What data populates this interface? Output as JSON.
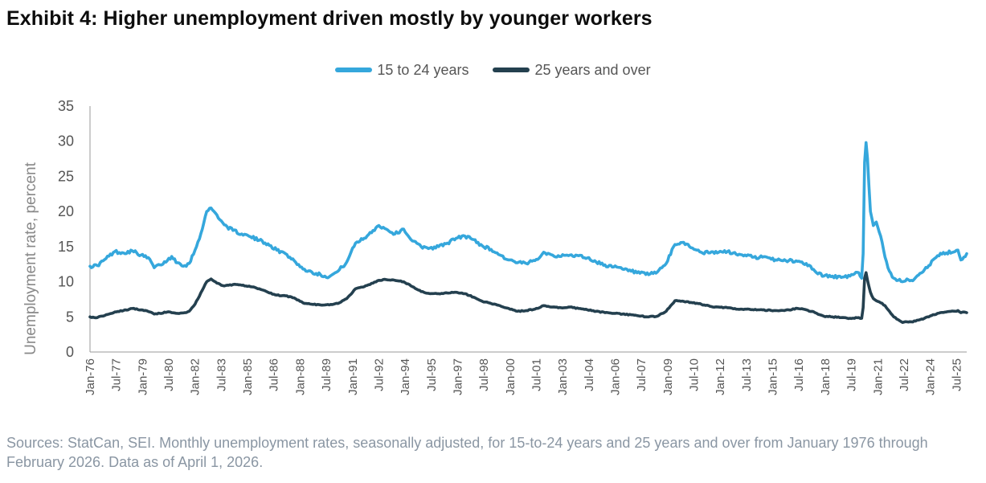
{
  "title": "Exhibit 4: Higher unemployment driven mostly by younger workers",
  "source_note": "Sources: StatCan, SEI. Monthly unemployment rates, seasonally adjusted, for 15-to-24 years and 25 years and over from January 1976 through February 2026. Data as of April 1, 2026.",
  "colors": {
    "youth": "#35a7dc",
    "adult": "#24404f",
    "axis": "#9a9a9a",
    "text": "#555555"
  },
  "chart_data": {
    "type": "line",
    "title": "Exhibit 4: Higher unemployment driven mostly by younger workers",
    "xlabel": "",
    "ylabel": "Unemployment rate, percent",
    "ylim": [
      0,
      35
    ],
    "yticks": [
      "0",
      "5",
      "10",
      "15",
      "20",
      "25",
      "30",
      "35"
    ],
    "legend_position": "top-center",
    "grid": false,
    "x_start": "1976-01",
    "x_end": "2026-02",
    "xtick_labels": [
      "Jan-76",
      "Jul-77",
      "Jan-79",
      "Jul-80",
      "Jan-82",
      "Jul-83",
      "Jan-85",
      "Jul-86",
      "Jan-88",
      "Jul-89",
      "Jan-91",
      "Jul-92",
      "Jan-94",
      "Jul-95",
      "Jan-97",
      "Jul-98",
      "Jan-00",
      "Jul-01",
      "Jan-03",
      "Jul-04",
      "Jan-06",
      "Jul-07",
      "Jan-09",
      "Jul-10",
      "Jan-12",
      "Jul-13",
      "Jan-15",
      "Jul-16",
      "Jan-18",
      "Jul-19",
      "Jan-21",
      "Jul-22",
      "Jan-24",
      "Jul-25"
    ],
    "series": [
      {
        "name": "15 to 24 years",
        "color": "#35a7dc",
        "points": [
          [
            "1976-01",
            12.2
          ],
          [
            "1976-06",
            12.3
          ],
          [
            "1976-12",
            13.3
          ],
          [
            "1977-06",
            14.3
          ],
          [
            "1977-12",
            14.1
          ],
          [
            "1978-06",
            14.4
          ],
          [
            "1978-12",
            13.8
          ],
          [
            "1979-06",
            13.2
          ],
          [
            "1979-09",
            12.0
          ],
          [
            "1980-01",
            12.4
          ],
          [
            "1980-06",
            13.0
          ],
          [
            "1980-09",
            13.6
          ],
          [
            "1981-01",
            12.7
          ],
          [
            "1981-06",
            12.3
          ],
          [
            "1981-09",
            12.6
          ],
          [
            "1982-01",
            14.5
          ],
          [
            "1982-06",
            17.5
          ],
          [
            "1982-09",
            20.0
          ],
          [
            "1982-12",
            20.5
          ],
          [
            "1983-04",
            19.5
          ],
          [
            "1983-09",
            18.1
          ],
          [
            "1984-03",
            17.3
          ],
          [
            "1984-09",
            16.8
          ],
          [
            "1985-03",
            16.4
          ],
          [
            "1985-09",
            15.9
          ],
          [
            "1986-03",
            15.4
          ],
          [
            "1986-09",
            14.5
          ],
          [
            "1987-03",
            14.0
          ],
          [
            "1987-09",
            13.0
          ],
          [
            "1988-03",
            11.8
          ],
          [
            "1988-09",
            11.4
          ],
          [
            "1989-03",
            11.0
          ],
          [
            "1989-09",
            10.7
          ],
          [
            "1990-03",
            11.5
          ],
          [
            "1990-09",
            12.8
          ],
          [
            "1991-03",
            15.5
          ],
          [
            "1991-09",
            16.2
          ],
          [
            "1992-03",
            17.3
          ],
          [
            "1992-07",
            18.0
          ],
          [
            "1992-12",
            17.5
          ],
          [
            "1993-06",
            16.8
          ],
          [
            "1993-12",
            17.5
          ],
          [
            "1994-06",
            15.8
          ],
          [
            "1994-12",
            15.0
          ],
          [
            "1995-06",
            14.8
          ],
          [
            "1995-12",
            15.0
          ],
          [
            "1996-06",
            15.5
          ],
          [
            "1996-12",
            16.2
          ],
          [
            "1997-06",
            16.5
          ],
          [
            "1997-12",
            16.0
          ],
          [
            "1998-06",
            15.1
          ],
          [
            "1998-12",
            14.6
          ],
          [
            "1999-06",
            13.8
          ],
          [
            "1999-12",
            13.1
          ],
          [
            "2000-06",
            12.7
          ],
          [
            "2000-12",
            12.6
          ],
          [
            "2001-06",
            13.0
          ],
          [
            "2001-12",
            14.2
          ],
          [
            "2002-06",
            13.8
          ],
          [
            "2002-12",
            13.6
          ],
          [
            "2003-06",
            13.8
          ],
          [
            "2003-12",
            13.7
          ],
          [
            "2004-06",
            13.4
          ],
          [
            "2004-12",
            12.8
          ],
          [
            "2005-06",
            12.4
          ],
          [
            "2005-12",
            12.1
          ],
          [
            "2006-06",
            11.8
          ],
          [
            "2006-12",
            11.5
          ],
          [
            "2007-06",
            11.2
          ],
          [
            "2007-12",
            11.0
          ],
          [
            "2008-06",
            11.4
          ],
          [
            "2008-12",
            12.6
          ],
          [
            "2009-06",
            15.3
          ],
          [
            "2009-12",
            15.6
          ],
          [
            "2010-06",
            14.8
          ],
          [
            "2010-12",
            14.2
          ],
          [
            "2011-06",
            14.1
          ],
          [
            "2011-12",
            14.2
          ],
          [
            "2012-06",
            14.3
          ],
          [
            "2012-12",
            13.9
          ],
          [
            "2013-06",
            13.8
          ],
          [
            "2013-12",
            13.5
          ],
          [
            "2014-06",
            13.5
          ],
          [
            "2014-12",
            13.2
          ],
          [
            "2015-06",
            13.1
          ],
          [
            "2015-12",
            13.0
          ],
          [
            "2016-06",
            12.9
          ],
          [
            "2016-12",
            12.6
          ],
          [
            "2017-06",
            11.5
          ],
          [
            "2017-12",
            10.8
          ],
          [
            "2018-06",
            10.8
          ],
          [
            "2018-12",
            10.6
          ],
          [
            "2019-06",
            10.8
          ],
          [
            "2019-12",
            11.3
          ],
          [
            "2020-02",
            10.5
          ],
          [
            "2020-03",
            14.0
          ],
          [
            "2020-04",
            27.0
          ],
          [
            "2020-05",
            29.8
          ],
          [
            "2020-06",
            27.5
          ],
          [
            "2020-08",
            20.0
          ],
          [
            "2020-10",
            18.0
          ],
          [
            "2020-12",
            18.5
          ],
          [
            "2021-03",
            16.5
          ],
          [
            "2021-06",
            13.5
          ],
          [
            "2021-09",
            11.5
          ],
          [
            "2021-12",
            10.5
          ],
          [
            "2022-03",
            10.2
          ],
          [
            "2022-06",
            10.0
          ],
          [
            "2022-09",
            10.4
          ],
          [
            "2022-12",
            10.2
          ],
          [
            "2023-03",
            10.6
          ],
          [
            "2023-06",
            11.2
          ],
          [
            "2023-09",
            11.7
          ],
          [
            "2023-12",
            12.3
          ],
          [
            "2024-06",
            13.7
          ],
          [
            "2024-12",
            14.1
          ],
          [
            "2025-06",
            14.3
          ],
          [
            "2025-08",
            14.5
          ],
          [
            "2025-10",
            13.1
          ],
          [
            "2025-12",
            13.5
          ],
          [
            "2026-02",
            14.0
          ]
        ]
      },
      {
        "name": "25 years and over",
        "color": "#24404f",
        "points": [
          [
            "1976-01",
            5.0
          ],
          [
            "1976-06",
            4.9
          ],
          [
            "1976-12",
            5.3
          ],
          [
            "1977-06",
            5.7
          ],
          [
            "1977-12",
            5.9
          ],
          [
            "1978-06",
            6.2
          ],
          [
            "1978-12",
            6.0
          ],
          [
            "1979-06",
            5.7
          ],
          [
            "1979-09",
            5.4
          ],
          [
            "1980-01",
            5.5
          ],
          [
            "1980-06",
            5.7
          ],
          [
            "1980-09",
            5.6
          ],
          [
            "1981-01",
            5.5
          ],
          [
            "1981-06",
            5.6
          ],
          [
            "1981-09",
            5.8
          ],
          [
            "1982-01",
            6.8
          ],
          [
            "1982-06",
            8.8
          ],
          [
            "1982-09",
            10.0
          ],
          [
            "1982-12",
            10.4
          ],
          [
            "1983-04",
            9.8
          ],
          [
            "1983-09",
            9.4
          ],
          [
            "1984-03",
            9.6
          ],
          [
            "1984-09",
            9.5
          ],
          [
            "1985-03",
            9.3
          ],
          [
            "1985-09",
            9.0
          ],
          [
            "1986-03",
            8.5
          ],
          [
            "1986-09",
            8.1
          ],
          [
            "1987-03",
            8.0
          ],
          [
            "1987-09",
            7.7
          ],
          [
            "1988-03",
            7.0
          ],
          [
            "1988-09",
            6.8
          ],
          [
            "1989-03",
            6.7
          ],
          [
            "1989-09",
            6.7
          ],
          [
            "1990-03",
            6.9
          ],
          [
            "1990-09",
            7.6
          ],
          [
            "1991-03",
            9.0
          ],
          [
            "1991-09",
            9.3
          ],
          [
            "1992-03",
            9.8
          ],
          [
            "1992-07",
            10.2
          ],
          [
            "1992-12",
            10.3
          ],
          [
            "1993-06",
            10.2
          ],
          [
            "1993-12",
            10.0
          ],
          [
            "1994-06",
            9.3
          ],
          [
            "1994-12",
            8.6
          ],
          [
            "1995-06",
            8.3
          ],
          [
            "1995-12",
            8.3
          ],
          [
            "1996-06",
            8.4
          ],
          [
            "1996-12",
            8.5
          ],
          [
            "1997-06",
            8.3
          ],
          [
            "1997-12",
            7.8
          ],
          [
            "1998-06",
            7.2
          ],
          [
            "1998-12",
            6.9
          ],
          [
            "1999-06",
            6.6
          ],
          [
            "1999-12",
            6.2
          ],
          [
            "2000-06",
            5.8
          ],
          [
            "2000-12",
            5.9
          ],
          [
            "2001-06",
            6.1
          ],
          [
            "2001-12",
            6.6
          ],
          [
            "2002-06",
            6.4
          ],
          [
            "2002-12",
            6.3
          ],
          [
            "2003-06",
            6.4
          ],
          [
            "2003-12",
            6.2
          ],
          [
            "2004-06",
            6.0
          ],
          [
            "2004-12",
            5.8
          ],
          [
            "2005-06",
            5.6
          ],
          [
            "2005-12",
            5.5
          ],
          [
            "2006-06",
            5.4
          ],
          [
            "2006-12",
            5.3
          ],
          [
            "2007-06",
            5.1
          ],
          [
            "2007-12",
            5.0
          ],
          [
            "2008-06",
            5.1
          ],
          [
            "2008-12",
            5.8
          ],
          [
            "2009-06",
            7.3
          ],
          [
            "2009-12",
            7.2
          ],
          [
            "2010-06",
            7.0
          ],
          [
            "2010-12",
            6.8
          ],
          [
            "2011-06",
            6.5
          ],
          [
            "2011-12",
            6.4
          ],
          [
            "2012-06",
            6.3
          ],
          [
            "2012-12",
            6.1
          ],
          [
            "2013-06",
            6.1
          ],
          [
            "2013-12",
            6.0
          ],
          [
            "2014-06",
            6.0
          ],
          [
            "2014-12",
            5.9
          ],
          [
            "2015-06",
            5.9
          ],
          [
            "2015-12",
            6.0
          ],
          [
            "2016-06",
            6.2
          ],
          [
            "2016-12",
            6.0
          ],
          [
            "2017-06",
            5.6
          ],
          [
            "2017-12",
            5.1
          ],
          [
            "2018-06",
            5.0
          ],
          [
            "2018-12",
            4.9
          ],
          [
            "2019-06",
            4.8
          ],
          [
            "2019-12",
            4.9
          ],
          [
            "2020-02",
            4.8
          ],
          [
            "2020-03",
            6.3
          ],
          [
            "2020-04",
            10.5
          ],
          [
            "2020-05",
            11.3
          ],
          [
            "2020-06",
            10.2
          ],
          [
            "2020-08",
            8.5
          ],
          [
            "2020-10",
            7.6
          ],
          [
            "2020-12",
            7.3
          ],
          [
            "2021-03",
            7.0
          ],
          [
            "2021-06",
            6.6
          ],
          [
            "2021-09",
            5.8
          ],
          [
            "2021-12",
            5.0
          ],
          [
            "2022-03",
            4.6
          ],
          [
            "2022-06",
            4.2
          ],
          [
            "2022-09",
            4.3
          ],
          [
            "2022-12",
            4.3
          ],
          [
            "2023-03",
            4.4
          ],
          [
            "2023-06",
            4.6
          ],
          [
            "2023-09",
            4.8
          ],
          [
            "2023-12",
            5.0
          ],
          [
            "2024-06",
            5.5
          ],
          [
            "2024-12",
            5.7
          ],
          [
            "2025-06",
            5.8
          ],
          [
            "2025-08",
            5.9
          ],
          [
            "2025-10",
            5.6
          ],
          [
            "2025-12",
            5.7
          ],
          [
            "2026-02",
            5.6
          ]
        ]
      }
    ]
  }
}
